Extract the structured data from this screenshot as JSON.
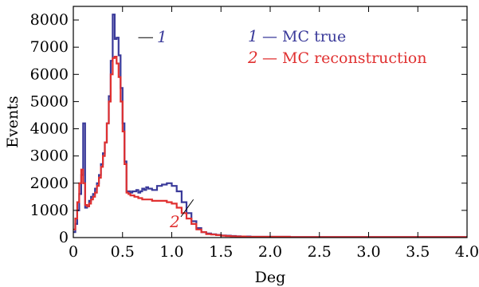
{
  "chart_data": {
    "type": "line",
    "xlabel": "Deg",
    "ylabel": "Events",
    "xlim": [
      0,
      4.0
    ],
    "ylim": [
      0,
      8500
    ],
    "x_ticks": [
      "0",
      "0.5",
      "1.0",
      "1.5",
      "2.0",
      "2.5",
      "3.0",
      "3.5",
      "4.0"
    ],
    "y_ticks": [
      "0",
      "1000",
      "2000",
      "3000",
      "4000",
      "5000",
      "6000",
      "7000",
      "8000"
    ],
    "x_tick_values": [
      0,
      0.5,
      1.0,
      1.5,
      2.0,
      2.5,
      3.0,
      3.5,
      4.0
    ],
    "y_tick_values": [
      0,
      1000,
      2000,
      3000,
      4000,
      5000,
      6000,
      7000,
      8000
    ],
    "grid": false,
    "legend_position": "top-right",
    "series": [
      {
        "name": "MC true",
        "label": "1",
        "color": "#3a3a9a",
        "x": [
          0,
          0.02,
          0.04,
          0.06,
          0.08,
          0.1,
          0.12,
          0.14,
          0.16,
          0.18,
          0.2,
          0.22,
          0.24,
          0.26,
          0.28,
          0.3,
          0.32,
          0.34,
          0.36,
          0.38,
          0.4,
          0.42,
          0.44,
          0.46,
          0.48,
          0.5,
          0.52,
          0.54,
          0.56,
          0.58,
          0.6,
          0.62,
          0.64,
          0.66,
          0.68,
          0.7,
          0.72,
          0.74,
          0.76,
          0.8,
          0.85,
          0.9,
          0.95,
          1.0,
          1.05,
          1.1,
          1.15,
          1.2,
          1.25,
          1.3,
          1.35,
          1.4,
          1.45,
          1.5,
          1.55,
          1.6,
          1.65,
          1.7,
          1.75,
          1.8,
          1.9,
          2.0,
          2.2,
          2.4,
          2.6,
          2.8,
          3.0,
          3.2,
          3.4,
          3.6,
          3.8,
          4.0
        ],
        "values": [
          200,
          500,
          1000,
          1600,
          2300,
          4200,
          1100,
          1150,
          1350,
          1500,
          1600,
          1800,
          2000,
          2300,
          2700,
          3100,
          3500,
          4200,
          5200,
          6500,
          8200,
          7300,
          7350,
          6700,
          5500,
          4200,
          2800,
          1700,
          1700,
          1650,
          1700,
          1700,
          1750,
          1650,
          1700,
          1800,
          1750,
          1850,
          1800,
          1750,
          1900,
          1950,
          2000,
          1900,
          1700,
          1300,
          900,
          600,
          350,
          200,
          150,
          120,
          100,
          80,
          70,
          60,
          50,
          40,
          40,
          30,
          30,
          30,
          20,
          20,
          20,
          20,
          20,
          20,
          20,
          20,
          20,
          20
        ]
      },
      {
        "name": "MC reconstruction",
        "label": "2",
        "color": "#e03030",
        "x": [
          0,
          0.02,
          0.04,
          0.06,
          0.08,
          0.1,
          0.12,
          0.14,
          0.16,
          0.18,
          0.2,
          0.22,
          0.24,
          0.26,
          0.28,
          0.3,
          0.32,
          0.34,
          0.36,
          0.38,
          0.4,
          0.42,
          0.44,
          0.46,
          0.48,
          0.5,
          0.52,
          0.54,
          0.56,
          0.58,
          0.6,
          0.62,
          0.64,
          0.66,
          0.68,
          0.7,
          0.72,
          0.74,
          0.76,
          0.8,
          0.85,
          0.9,
          0.95,
          1.0,
          1.05,
          1.1,
          1.15,
          1.2,
          1.25,
          1.3,
          1.35,
          1.4,
          1.45,
          1.5,
          1.55,
          1.6,
          1.65,
          1.7,
          1.75,
          1.8,
          1.9,
          2.0,
          2.2,
          2.4,
          2.6,
          2.8,
          3.0,
          3.2,
          3.4,
          3.6,
          3.8,
          4.0
        ],
        "values": [
          300,
          700,
          1300,
          2000,
          2500,
          2000,
          1200,
          1150,
          1250,
          1400,
          1500,
          1650,
          1900,
          2200,
          2600,
          3000,
          3500,
          4200,
          5000,
          6000,
          6600,
          6650,
          6400,
          5900,
          5000,
          3900,
          2700,
          1650,
          1600,
          1550,
          1550,
          1500,
          1500,
          1450,
          1450,
          1400,
          1400,
          1400,
          1400,
          1350,
          1350,
          1350,
          1300,
          1250,
          1100,
          900,
          700,
          500,
          300,
          200,
          130,
          110,
          90,
          70,
          60,
          50,
          40,
          40,
          30,
          30,
          30,
          30,
          20,
          20,
          20,
          20,
          20,
          20,
          20,
          20,
          20,
          20
        ]
      }
    ],
    "legend": [
      {
        "num": "1",
        "text": "— MC true",
        "color": "#3a3a9a"
      },
      {
        "num": "2",
        "text": "— MC reconstruction",
        "color": "#e03030"
      }
    ]
  }
}
